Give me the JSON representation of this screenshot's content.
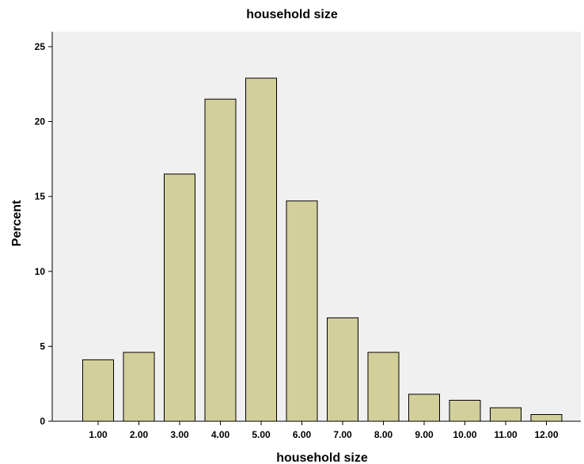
{
  "chart_data": {
    "type": "bar",
    "title": "household size",
    "xlabel": "household size",
    "ylabel": "Percent",
    "categories": [
      "1.00",
      "2.00",
      "3.00",
      "4.00",
      "5.00",
      "6.00",
      "7.00",
      "8.00",
      "9.00",
      "10.00",
      "11.00",
      "12.00"
    ],
    "values": [
      4.1,
      4.6,
      16.5,
      21.5,
      22.9,
      14.7,
      6.9,
      4.6,
      1.8,
      1.4,
      0.9,
      0.45
    ],
    "ylim": [
      0,
      26
    ],
    "yticks": [
      0,
      5,
      10,
      15,
      20,
      25
    ],
    "grid": false,
    "legend": "none",
    "colors": {
      "bar_fill": "#d3cf9b",
      "plot_background": "#f0f0f0",
      "bar_edge": "#000000"
    }
  }
}
